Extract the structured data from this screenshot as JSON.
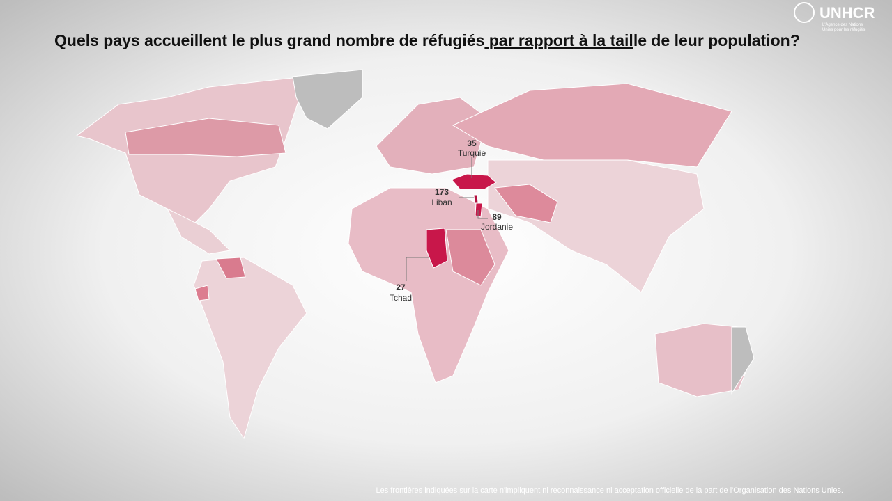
{
  "header": {
    "title_before": "Quels pays accueillent le plus grand nombre de réfugiés",
    "title_underlined": " par rapport à la tail",
    "title_after": "le de leur population?"
  },
  "logo": {
    "name": "UNHCR",
    "tagline_1": "L'Agence des Nations",
    "tagline_2": "Unies pour les réfugiés"
  },
  "annotations": [
    {
      "value": 35,
      "label": "Turquie"
    },
    {
      "value": 173,
      "label": "Liban"
    },
    {
      "value": 89,
      "label": "Jordanie"
    },
    {
      "value": 27,
      "label": "Tchad"
    }
  ],
  "footer": {
    "disclaimer": "Les frontières indiquées sur la carte n'impliquent ni reconnaissance ni acceptation officielle de la part de l'Organisation des Nations Unies."
  }
}
